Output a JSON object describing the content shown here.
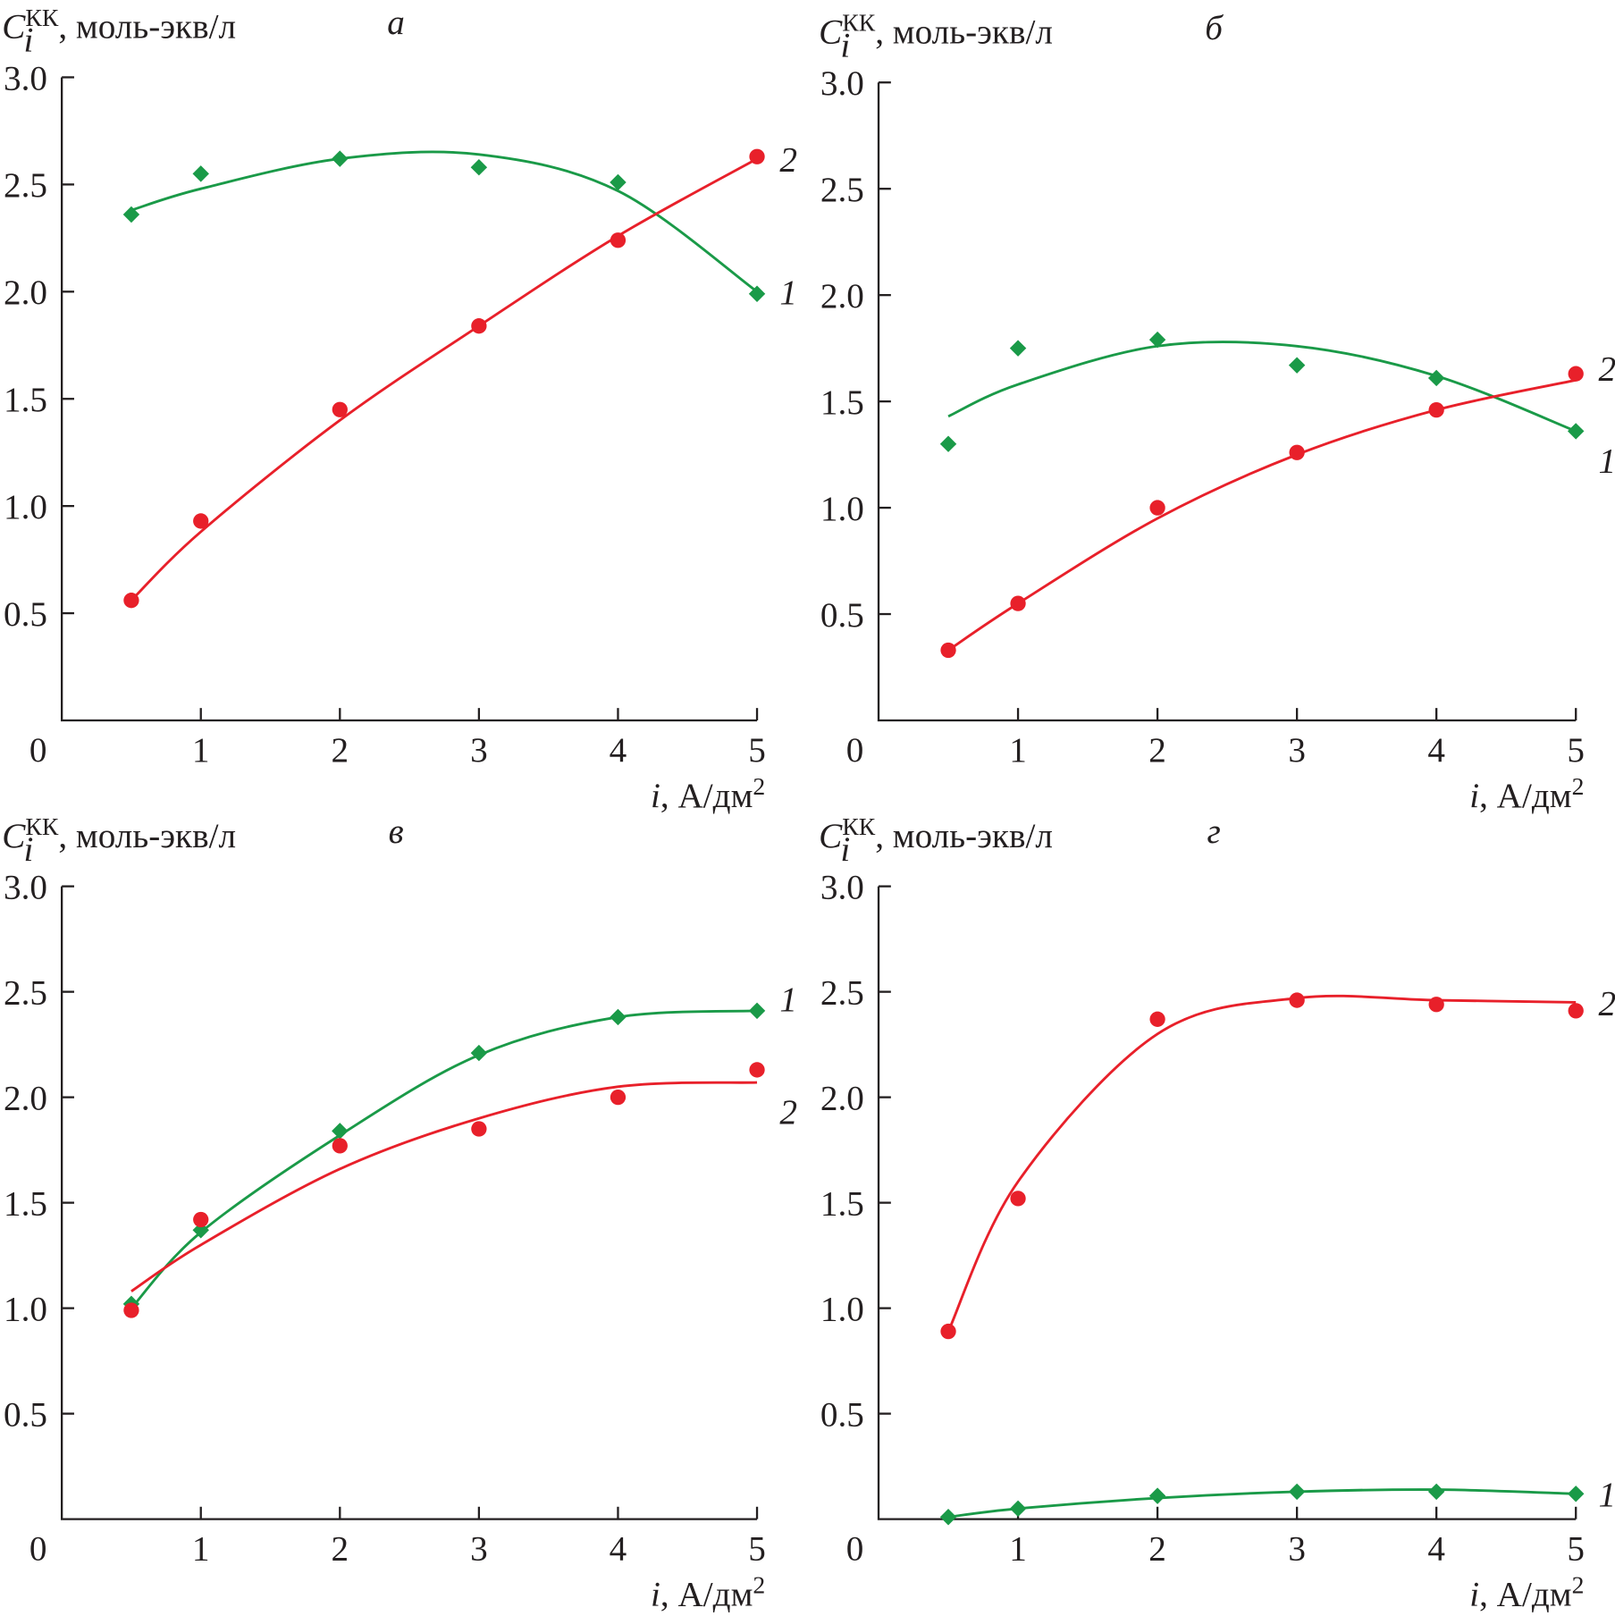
{
  "chart_data": [
    {
      "type": "scatter",
      "title": "а",
      "xlim": [
        0,
        5
      ],
      "ylim": [
        0,
        3
      ],
      "xticks": [
        0,
        1,
        2,
        3,
        4,
        5
      ],
      "yticks": [
        0.5,
        {
          "value": 1,
          "label": "1.0"
        },
        1.5,
        {
          "value": 2,
          "label": "2.0"
        },
        2.5,
        {
          "value": 3,
          "label": "3.0"
        }
      ],
      "y_label": {
        "symbol": "C",
        "subscript": "i",
        "superscript": "КК",
        "text": ", моль-экв/л"
      },
      "x_label": {
        "symbol": "i",
        "text": ", А/дм",
        "superscript": "2"
      },
      "x": [
        0.5,
        1,
        2,
        3,
        4,
        5
      ],
      "series": [
        {
          "name": "1",
          "color": "#1a9a48",
          "marker": "diamond",
          "values": [
            2.36,
            2.55,
            2.62,
            2.58,
            2.51,
            1.99
          ],
          "fit": [
            2.38,
            2.48,
            2.62,
            2.64,
            2.47,
            2.0
          ]
        },
        {
          "name": "2",
          "color": "#e8202a",
          "marker": "circle",
          "values": [
            0.56,
            0.93,
            1.45,
            1.84,
            2.24,
            2.63
          ],
          "fit": [
            0.56,
            0.88,
            1.4,
            1.84,
            2.26,
            2.62
          ]
        }
      ]
    },
    {
      "type": "scatter",
      "title": "б",
      "xlim": [
        0,
        5
      ],
      "ylim": [
        0,
        3
      ],
      "xticks": [
        0,
        1,
        2,
        3,
        4,
        5
      ],
      "yticks": [
        0.5,
        {
          "value": 1,
          "label": "1.0"
        },
        1.5,
        {
          "value": 2,
          "label": "2.0"
        },
        2.5,
        {
          "value": 3,
          "label": "3.0"
        }
      ],
      "y_label": {
        "symbol": "C",
        "subscript": "i",
        "superscript": "КК",
        "text": ", моль-экв/л"
      },
      "x_label": {
        "symbol": "i",
        "text": ", А/дм",
        "superscript": "2"
      },
      "x": [
        0.5,
        1,
        2,
        3,
        4,
        5
      ],
      "series": [
        {
          "name": "1",
          "color": "#1a9a48",
          "marker": "diamond",
          "values": [
            1.3,
            1.75,
            1.79,
            1.67,
            1.61,
            1.36
          ],
          "fit": [
            1.43,
            1.58,
            1.76,
            1.76,
            1.62,
            1.36
          ]
        },
        {
          "name": "2",
          "color": "#e8202a",
          "marker": "circle",
          "values": [
            0.33,
            0.55,
            1.0,
            1.26,
            1.46,
            1.63
          ],
          "fit": [
            0.33,
            0.55,
            0.95,
            1.25,
            1.46,
            1.6
          ]
        }
      ]
    },
    {
      "type": "scatter",
      "title": "в",
      "xlim": [
        0,
        5
      ],
      "ylim": [
        0,
        3
      ],
      "xticks": [
        0,
        1,
        2,
        3,
        4,
        5
      ],
      "yticks": [
        0.5,
        {
          "value": 1,
          "label": "1.0"
        },
        1.5,
        {
          "value": 2,
          "label": "2.0"
        },
        2.5,
        {
          "value": 3,
          "label": "3.0"
        }
      ],
      "y_label": {
        "symbol": "C",
        "subscript": "i",
        "superscript": "КК",
        "text": ", моль-экв/л"
      },
      "x_label": {
        "symbol": "i",
        "text": ", А/дм",
        "superscript": "2"
      },
      "x": [
        0.5,
        1,
        2,
        3,
        4,
        5
      ],
      "series": [
        {
          "name": "1",
          "color": "#1a9a48",
          "marker": "diamond",
          "values": [
            1.02,
            1.37,
            1.84,
            2.21,
            2.38,
            2.41
          ],
          "fit": [
            1.0,
            1.36,
            1.82,
            2.2,
            2.38,
            2.41
          ]
        },
        {
          "name": "2",
          "color": "#e8202a",
          "marker": "circle",
          "values": [
            0.99,
            1.42,
            1.77,
            1.85,
            2.0,
            2.13
          ],
          "fit": [
            1.08,
            1.3,
            1.66,
            1.9,
            2.05,
            2.07
          ]
        }
      ]
    },
    {
      "type": "scatter",
      "title": "г",
      "xlim": [
        0,
        5
      ],
      "ylim": [
        0,
        3
      ],
      "xticks": [
        0,
        1,
        2,
        3,
        4,
        5
      ],
      "yticks": [
        0.5,
        {
          "value": 1,
          "label": "1.0"
        },
        1.5,
        {
          "value": 2,
          "label": "2.0"
        },
        2.5,
        {
          "value": 3,
          "label": "3.0"
        }
      ],
      "y_label": {
        "symbol": "C",
        "subscript": "i",
        "superscript": "КК",
        "text": ", моль-экв/л"
      },
      "x_label": {
        "symbol": "i",
        "text": ", А/дм",
        "superscript": "2"
      },
      "x": [
        0.5,
        1,
        2,
        3,
        4,
        5
      ],
      "series": [
        {
          "name": "1",
          "color": "#1a9a48",
          "marker": "diamond",
          "values": [
            0.01,
            0.05,
            0.11,
            0.13,
            0.13,
            0.12
          ],
          "fit": [
            0.01,
            0.05,
            0.1,
            0.13,
            0.14,
            0.12
          ]
        },
        {
          "name": "2",
          "color": "#e8202a",
          "marker": "circle",
          "values": [
            0.89,
            1.52,
            2.37,
            2.46,
            2.44,
            2.41
          ],
          "fit": [
            0.89,
            1.6,
            2.3,
            2.47,
            2.46,
            2.45
          ]
        }
      ]
    }
  ]
}
